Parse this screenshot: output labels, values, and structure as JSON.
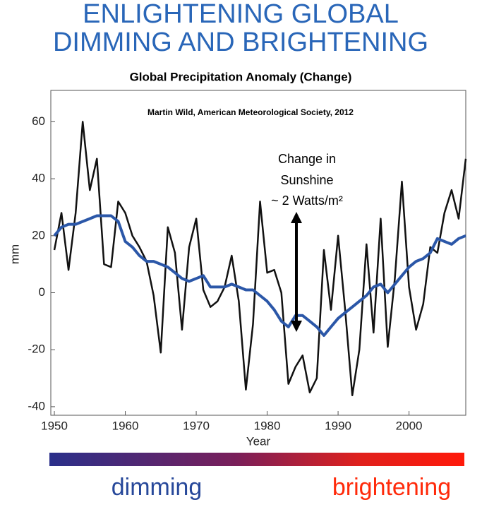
{
  "header": {
    "title_lines": [
      "ENLIGHTENING GLOBAL",
      "DIMMING AND BRIGHTENING"
    ]
  },
  "chart_data": {
    "type": "line",
    "title": "Global Precipitation Anomaly (Change)",
    "annotation": "Martin Wild, American Meteorological Society, 2012",
    "callout_lines": [
      "Change in",
      "Sunshine",
      "~ 2 Watts/m²"
    ],
    "xlabel": "Year",
    "ylabel": "mm",
    "x": [
      1950,
      1951,
      1952,
      1953,
      1954,
      1955,
      1956,
      1957,
      1958,
      1959,
      1960,
      1961,
      1962,
      1963,
      1964,
      1965,
      1966,
      1967,
      1968,
      1969,
      1970,
      1971,
      1972,
      1973,
      1974,
      1975,
      1976,
      1977,
      1978,
      1979,
      1980,
      1981,
      1982,
      1983,
      1984,
      1985,
      1986,
      1987,
      1988,
      1989,
      1990,
      1991,
      1992,
      1993,
      1994,
      1995,
      1996,
      1997,
      1998,
      1999,
      2000,
      2001,
      2002,
      2003,
      2004,
      2005,
      2006,
      2007,
      2008
    ],
    "series": [
      {
        "color": "#111111",
        "values": [
          15,
          28,
          8,
          28,
          60,
          36,
          47,
          10,
          9,
          32,
          28,
          20,
          16,
          11,
          -1,
          -21,
          23,
          14,
          -13,
          16,
          26,
          1,
          -5,
          -3,
          2,
          13,
          -3,
          -34,
          -11,
          32,
          7,
          8,
          0,
          -32,
          -26,
          -22,
          -35,
          -30,
          15,
          -6,
          20,
          -6,
          -36,
          -20,
          17,
          -14,
          26,
          -19,
          5,
          39,
          2,
          -13,
          -4,
          16,
          14,
          28,
          36,
          26,
          47
        ]
      },
      {
        "color": "#2b57a8",
        "values": [
          20,
          23,
          24,
          24,
          25,
          26,
          27,
          27,
          27,
          25,
          18,
          16,
          13,
          11,
          11,
          10,
          9,
          7,
          5,
          4,
          5,
          6,
          2,
          2,
          2,
          3,
          2,
          1,
          1,
          -1,
          -3,
          -6,
          -10,
          -12,
          -8,
          -8,
          -10,
          -12,
          -15,
          -12,
          -9,
          -7,
          -5,
          -3,
          -1,
          2,
          3,
          0,
          3,
          6,
          9,
          11,
          12,
          14,
          19,
          18,
          17,
          19,
          20
        ]
      }
    ],
    "xlim": [
      1949.5,
      2008
    ],
    "xticks": [
      1950,
      1960,
      1970,
      1980,
      1990,
      2000
    ],
    "ylim": [
      -43,
      71
    ],
    "yticks": [
      -40,
      -20,
      0,
      20,
      40,
      60
    ]
  },
  "scale_bar": {
    "left_label": "dimming",
    "right_label": "brightening"
  }
}
